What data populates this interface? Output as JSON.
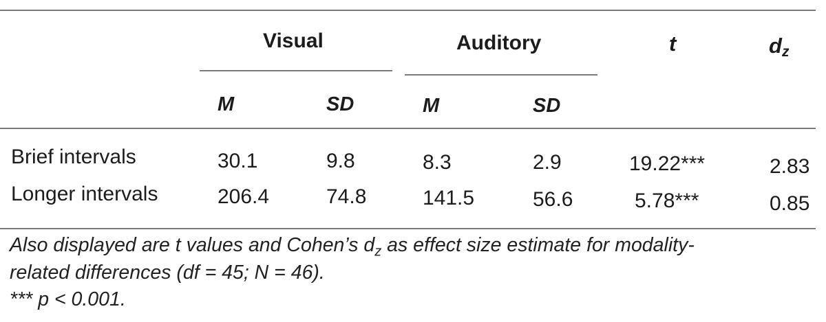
{
  "table": {
    "headers": {
      "visual": "Visual",
      "auditory": "Auditory",
      "t": "t",
      "dz_main": "d",
      "dz_sub": "z",
      "visual_m": "M",
      "visual_sd": "SD",
      "auditory_m": "M",
      "auditory_sd": "SD"
    },
    "rows": [
      {
        "label": "Brief intervals",
        "visual_m": "30.1",
        "visual_sd": "9.8",
        "auditory_m": "8.3",
        "auditory_sd": "2.9",
        "t": "19.22***",
        "dz": "2.83"
      },
      {
        "label": "Longer intervals",
        "visual_m": "206.4",
        "visual_sd": "74.8",
        "auditory_m": "141.5",
        "auditory_sd": "56.6",
        "t": "5.78***",
        "dz": "0.85"
      }
    ]
  },
  "notes": {
    "line1_a": "Also displayed are t values and Cohen’s d",
    "line1_sub": "z",
    "line1_b": " as effect size estimate for modality-",
    "line2": "related differences (df = 45; N = 46).",
    "line3": "*** p < 0.001."
  }
}
